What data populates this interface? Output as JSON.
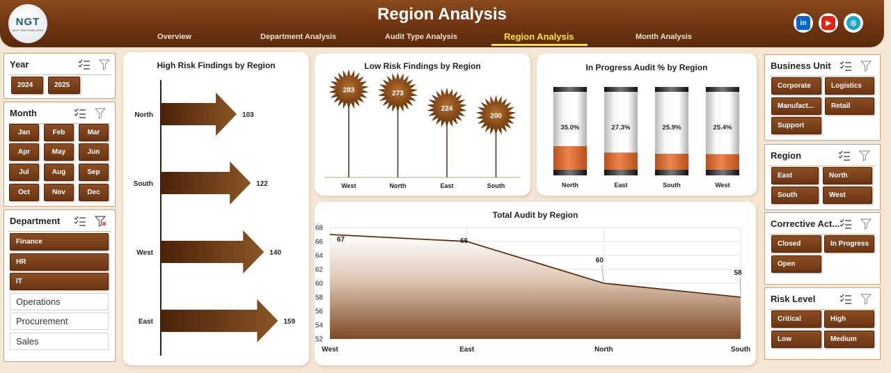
{
  "header": {
    "title": "Region Analysis",
    "logo_text": "NGT",
    "logo_subtext": "NEXT GEN TEMPLATES",
    "nav": [
      "Overview",
      "Department Analysis",
      "Audit Type Analysis",
      "Region Analysis",
      "Month Analysis"
    ],
    "active_nav": "Region Analysis",
    "social": [
      {
        "icon": "linkedin-icon",
        "label": "in",
        "color": "#0a66c2"
      },
      {
        "icon": "youtube-icon",
        "label": "▶",
        "color": "#e62117"
      },
      {
        "icon": "globe-icon",
        "label": "◎",
        "color": "#18a6c9"
      }
    ]
  },
  "colors": {
    "accent": "#6e3512",
    "highlight": "#ffe234",
    "bar_fill": "#e2733a"
  },
  "slicers": {
    "year": {
      "title": "Year",
      "items": [
        "2024",
        "2025"
      ]
    },
    "month": {
      "title": "Month",
      "items": [
        "Jan",
        "Feb",
        "Mar",
        "Apr",
        "May",
        "Jun",
        "Jul",
        "Aug",
        "Sep",
        "Oct",
        "Nov",
        "Dec"
      ]
    },
    "department": {
      "title": "Department",
      "selected": [
        "Finance",
        "HR",
        "IT"
      ],
      "unselected": [
        "Operations",
        "Procurement",
        "Sales"
      ]
    },
    "business_unit": {
      "title": "Business Unit",
      "items": [
        "Corporate",
        "Logistics",
        "Manufact...",
        "Retail",
        "Support"
      ]
    },
    "region": {
      "title": "Region",
      "items": [
        "East",
        "North",
        "South",
        "West"
      ]
    },
    "corrective_action": {
      "title": "Corrective Act...",
      "items": [
        "Closed",
        "In Progress",
        "Open"
      ]
    },
    "risk_level": {
      "title": "Risk Level",
      "items": [
        "Critical",
        "High",
        "Low",
        "Medium"
      ]
    }
  },
  "chart_data": [
    {
      "type": "bar",
      "title": "High Risk Findings by Region",
      "categories": [
        "North",
        "South",
        "West",
        "East"
      ],
      "values": [
        103,
        122,
        140,
        159
      ]
    },
    {
      "type": "bar",
      "title": "Low Risk Findings by Region",
      "categories": [
        "West",
        "North",
        "East",
        "South"
      ],
      "values": [
        283,
        273,
        224,
        200
      ]
    },
    {
      "type": "bar",
      "title": "In Progress Audit % by Region",
      "categories": [
        "North",
        "East",
        "South",
        "West"
      ],
      "values": [
        35.0,
        27.3,
        25.9,
        25.4
      ],
      "labels": [
        "35.0%",
        "27.3%",
        "25.9%",
        "25.4%"
      ]
    },
    {
      "type": "area",
      "title": "Total Audit by Region",
      "categories": [
        "West",
        "East",
        "North",
        "South"
      ],
      "values": [
        67,
        66,
        60,
        58
      ],
      "ylim": [
        52,
        68
      ],
      "yticks": [
        "52",
        "54",
        "56",
        "58",
        "60",
        "62",
        "64",
        "66",
        "68"
      ],
      "grid": true
    }
  ]
}
